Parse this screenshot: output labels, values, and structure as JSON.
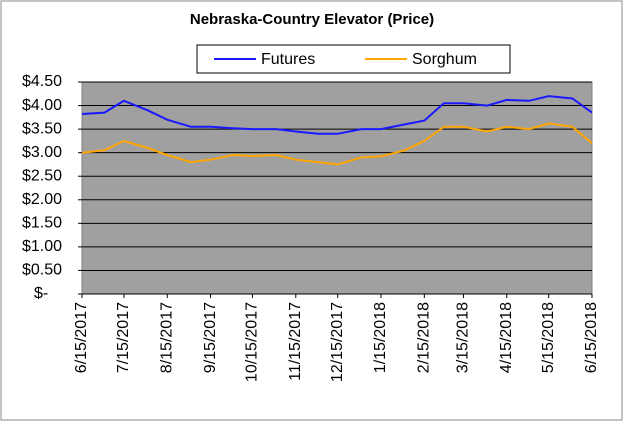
{
  "chart_data": {
    "type": "line",
    "title": "Nebraska-Country Elevator (Price)",
    "x": [
      "6/15/2017",
      "7/1/2017",
      "7/15/2017",
      "8/1/2017",
      "8/15/2017",
      "9/1/2017",
      "9/15/2017",
      "10/1/2017",
      "10/15/2017",
      "11/1/2017",
      "11/15/2017",
      "12/1/2017",
      "12/15/2017",
      "1/1/2018",
      "1/15/2018",
      "2/1/2018",
      "2/15/2018",
      "3/1/2018",
      "3/15/2018",
      "4/1/2018",
      "4/15/2018",
      "5/1/2018",
      "5/15/2018",
      "6/1/2018",
      "6/15/2018"
    ],
    "series": [
      {
        "name": "Futures",
        "color": "#1a1aff",
        "values": [
          3.82,
          3.85,
          4.1,
          3.9,
          3.7,
          3.55,
          3.55,
          3.52,
          3.5,
          3.5,
          3.45,
          3.4,
          3.4,
          3.5,
          3.5,
          3.6,
          3.68,
          4.05,
          4.05,
          4.0,
          4.12,
          4.1,
          4.2,
          4.15,
          3.85
        ]
      },
      {
        "name": "Sorghum",
        "color": "#ffa500",
        "values": [
          3.0,
          3.05,
          3.25,
          3.1,
          2.95,
          2.8,
          2.85,
          2.95,
          2.93,
          2.95,
          2.85,
          2.8,
          2.75,
          2.9,
          2.92,
          3.05,
          3.25,
          3.55,
          3.55,
          3.45,
          3.55,
          3.5,
          3.62,
          3.55,
          3.2
        ]
      }
    ],
    "xlim": [
      "6/15/2017",
      "6/15/2018"
    ],
    "xticks": [
      "6/15/2017",
      "7/15/2017",
      "8/15/2017",
      "9/15/2017",
      "10/15/2017",
      "11/15/2017",
      "12/15/2017",
      "1/15/2018",
      "2/15/2018",
      "3/15/2018",
      "4/15/2018",
      "5/15/2018",
      "6/15/2018"
    ],
    "ylim": [
      0,
      4.5
    ],
    "yticks": [
      {
        "value": 0,
        "label": "$-"
      },
      {
        "value": 0.5,
        "label": "$0.50"
      },
      {
        "value": 1,
        "label": "$1.00"
      },
      {
        "value": 1.5,
        "label": "$1.50"
      },
      {
        "value": 2,
        "label": "$2.00"
      },
      {
        "value": 2.5,
        "label": "$2.50"
      },
      {
        "value": 3,
        "label": "$3.00"
      },
      {
        "value": 3.5,
        "label": "$3.50"
      },
      {
        "value": 4,
        "label": "$4.00"
      },
      {
        "value": 4.5,
        "label": "$4.50"
      }
    ],
    "grid": true,
    "legend": "top"
  }
}
